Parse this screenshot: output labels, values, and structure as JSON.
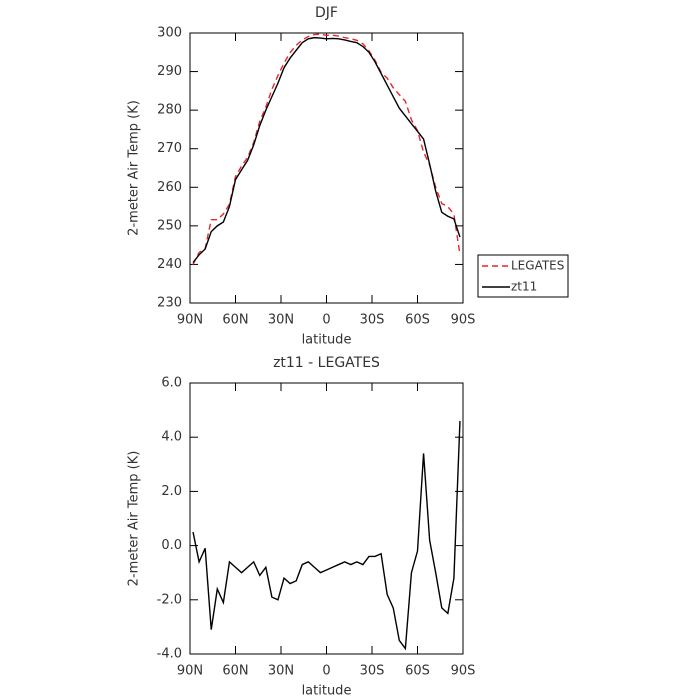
{
  "chart_data": [
    {
      "type": "line",
      "title": "DJF",
      "ylabel": "2-meter Air Temp (K)",
      "xlabel": "latitude",
      "x": [
        88,
        84,
        80,
        76,
        72,
        68,
        64,
        60,
        56,
        52,
        48,
        44,
        40,
        36,
        32,
        28,
        24,
        20,
        16,
        12,
        8,
        4,
        0,
        -4,
        -8,
        -12,
        -16,
        -20,
        -24,
        -28,
        -32,
        -36,
        -40,
        -44,
        -48,
        -52,
        -56,
        -60,
        -64,
        -68,
        -72,
        -76,
        -80,
        -84,
        -88
      ],
      "series": [
        {
          "name": "LEGATES",
          "color": "#e8242c",
          "linestyle": "dashed",
          "values": [
            240.0,
            243.1,
            244.1,
            251.6,
            251.6,
            253.1,
            255.6,
            262.8,
            265.5,
            267.8,
            271.6,
            277.1,
            280.8,
            285.4,
            289.0,
            292.2,
            294.9,
            296.8,
            298.2,
            299.1,
            299.6,
            299.7,
            299.4,
            299.4,
            299.2,
            298.8,
            298.5,
            298.1,
            297.2,
            295.4,
            292.9,
            289.8,
            288.3,
            285.8,
            284.0,
            282.3,
            277.5,
            274.7,
            269.1,
            265.8,
            260.0,
            255.8,
            255.0,
            253.0,
            242.5
          ]
        },
        {
          "name": "zt11",
          "color": "#000000",
          "linestyle": "solid",
          "values": [
            240.5,
            242.5,
            244.0,
            248.5,
            250.0,
            251.0,
            255.0,
            262.0,
            264.5,
            267.0,
            271.0,
            276.0,
            280.0,
            283.5,
            287.0,
            291.0,
            293.5,
            295.5,
            297.5,
            298.5,
            298.8,
            298.7,
            298.5,
            298.6,
            298.5,
            298.2,
            297.8,
            297.5,
            296.5,
            295.0,
            292.5,
            289.5,
            286.5,
            283.5,
            280.5,
            278.5,
            276.5,
            274.5,
            272.5,
            266.0,
            259.0,
            253.5,
            252.5,
            251.8,
            247.1
          ]
        }
      ],
      "xlim": [
        90,
        -90
      ],
      "xticks": [
        {
          "value": 90,
          "label": "90N"
        },
        {
          "value": 60,
          "label": "60N"
        },
        {
          "value": 30,
          "label": "30N"
        },
        0,
        {
          "value": -30,
          "label": "30S"
        },
        {
          "value": -60,
          "label": "60S"
        },
        {
          "value": -90,
          "label": "90S"
        }
      ],
      "ylim": [
        230,
        300
      ],
      "yticks": [
        230,
        240,
        250,
        260,
        270,
        280,
        290,
        300
      ],
      "legend": "right"
    },
    {
      "type": "line",
      "title": "zt11 - LEGATES",
      "ylabel": "2-meter Air Temp (K)",
      "xlabel": "latitude",
      "x": [
        88,
        84,
        80,
        76,
        72,
        68,
        64,
        60,
        56,
        52,
        48,
        44,
        40,
        36,
        32,
        28,
        24,
        20,
        16,
        12,
        8,
        4,
        0,
        -4,
        -8,
        -12,
        -16,
        -20,
        -24,
        -28,
        -32,
        -36,
        -40,
        -44,
        -48,
        -52,
        -56,
        -60,
        -64,
        -68,
        -72,
        -76,
        -80,
        -84,
        -88
      ],
      "values": [
        0.5,
        -0.6,
        -0.1,
        -3.1,
        -1.6,
        -2.1,
        -0.6,
        -0.8,
        -1.0,
        -0.8,
        -0.6,
        -1.1,
        -0.8,
        -1.9,
        -2.0,
        -1.2,
        -1.4,
        -1.3,
        -0.7,
        -0.6,
        -0.8,
        -1.0,
        -0.9,
        -0.8,
        -0.7,
        -0.6,
        -0.7,
        -0.6,
        -0.7,
        -0.4,
        -0.4,
        -0.3,
        -1.8,
        -2.3,
        -3.5,
        -3.8,
        -1.0,
        -0.2,
        3.4,
        0.2,
        -1.0,
        -2.3,
        -2.5,
        -1.2,
        4.6
      ],
      "color": "#000000",
      "xlim": [
        90,
        -90
      ],
      "xticks": [
        {
          "value": 90,
          "label": "90N"
        },
        {
          "value": 60,
          "label": "60N"
        },
        {
          "value": 30,
          "label": "30N"
        },
        0,
        {
          "value": -30,
          "label": "30S"
        },
        {
          "value": -60,
          "label": "60S"
        },
        {
          "value": -90,
          "label": "90S"
        }
      ],
      "ylim": [
        -4,
        6
      ],
      "yticks": [
        {
          "value": -4,
          "label": "-4.0"
        },
        {
          "value": -2,
          "label": "-2.0"
        },
        {
          "value": 0,
          "label": "0.0"
        },
        {
          "value": 2,
          "label": "2.0"
        },
        {
          "value": 4,
          "label": "4.0"
        },
        {
          "value": 6,
          "label": "6.0"
        }
      ]
    }
  ]
}
